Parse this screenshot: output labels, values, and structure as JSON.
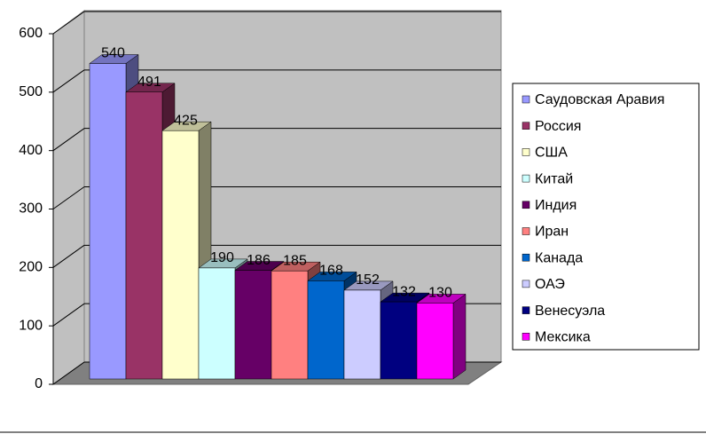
{
  "chart_data": {
    "type": "bar3d",
    "categories": [
      null
    ],
    "series": [
      {
        "name": "Саудовская Аравия",
        "color": "#9999ff",
        "values": [
          540
        ]
      },
      {
        "name": "Россия",
        "color": "#993366",
        "values": [
          491
        ]
      },
      {
        "name": "США",
        "color": "#ffffcc",
        "values": [
          425
        ]
      },
      {
        "name": "Китай",
        "color": "#ccffff",
        "values": [
          190
        ]
      },
      {
        "name": "Индия",
        "color": "#660066",
        "values": [
          186
        ]
      },
      {
        "name": "Иран",
        "color": "#ff8080",
        "values": [
          185
        ]
      },
      {
        "name": "Канада",
        "color": "#0066cc",
        "values": [
          168
        ]
      },
      {
        "name": "ОАЭ",
        "color": "#ccccff",
        "values": [
          152
        ]
      },
      {
        "name": "Венесуэла",
        "color": "#000080",
        "values": [
          132
        ]
      },
      {
        "name": "Мексика",
        "color": "#ff00ff",
        "values": [
          130
        ]
      }
    ],
    "ylim": [
      0,
      600
    ],
    "yticks": [
      0,
      100,
      200,
      300,
      400,
      500,
      600
    ],
    "grid": true,
    "legend": "right"
  }
}
